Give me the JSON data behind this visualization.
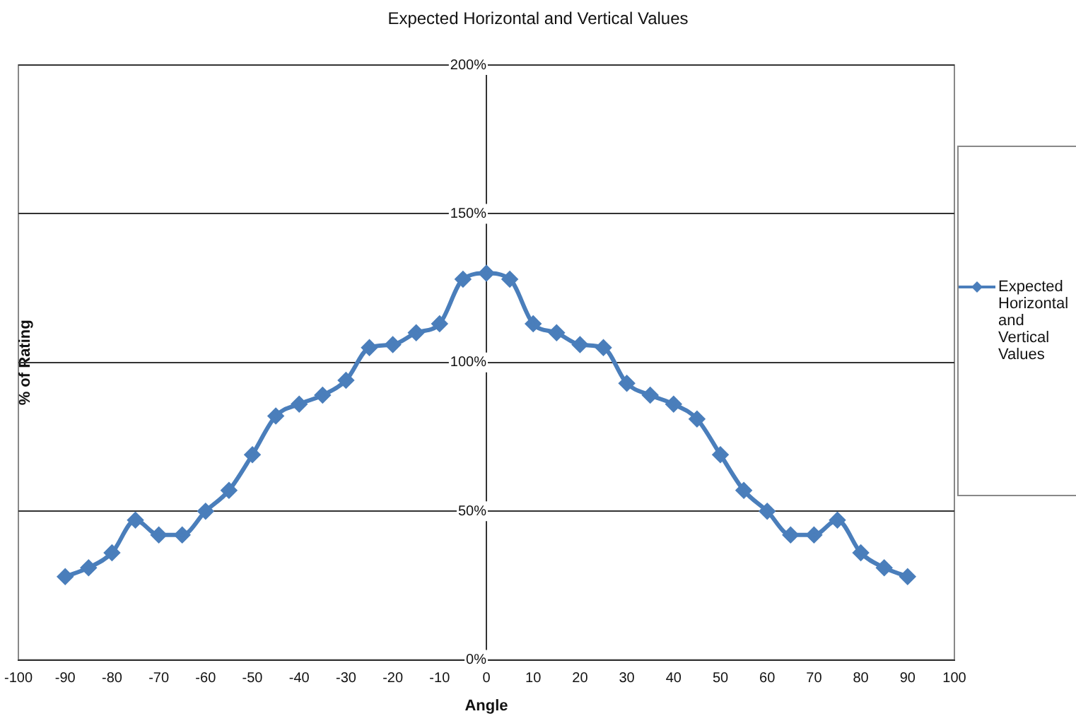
{
  "chart_data": {
    "type": "line",
    "title": "Expected Horizontal and Vertical Values",
    "xlabel": "Angle",
    "ylabel": "% of Rating",
    "x": [
      -90,
      -85,
      -80,
      -75,
      -70,
      -65,
      -60,
      -55,
      -50,
      -45,
      -40,
      -35,
      -30,
      -25,
      -20,
      -15,
      -10,
      -5,
      0,
      5,
      10,
      15,
      20,
      25,
      30,
      35,
      40,
      45,
      50,
      55,
      60,
      65,
      70,
      75,
      80,
      85,
      90
    ],
    "series": [
      {
        "name": "Expected Horizontal and Vertical Values",
        "color": "#4a7ebb",
        "values": [
          28,
          31,
          36,
          47,
          42,
          42,
          50,
          57,
          69,
          82,
          86,
          89,
          94,
          105,
          106,
          110,
          113,
          128,
          130,
          128,
          113,
          110,
          106,
          105,
          93,
          89,
          86,
          81,
          69,
          57,
          50,
          42,
          42,
          47,
          36,
          31,
          28
        ]
      }
    ],
    "xlim": [
      -100,
      100
    ],
    "xticks": [
      -100,
      -90,
      -80,
      -70,
      -60,
      -50,
      -40,
      -30,
      -20,
      -10,
      0,
      10,
      20,
      30,
      40,
      50,
      60,
      70,
      80,
      90,
      100
    ],
    "ylim": [
      0,
      200
    ],
    "yticks": [
      {
        "value": 0,
        "label": "0%"
      },
      {
        "value": 50,
        "label": "50%"
      },
      {
        "value": 100,
        "label": "100%"
      },
      {
        "value": 150,
        "label": "150%"
      },
      {
        "value": 200,
        "label": "200%"
      }
    ],
    "grid": "y",
    "legend": "right",
    "marker": "diamond",
    "line_style": "solid"
  }
}
